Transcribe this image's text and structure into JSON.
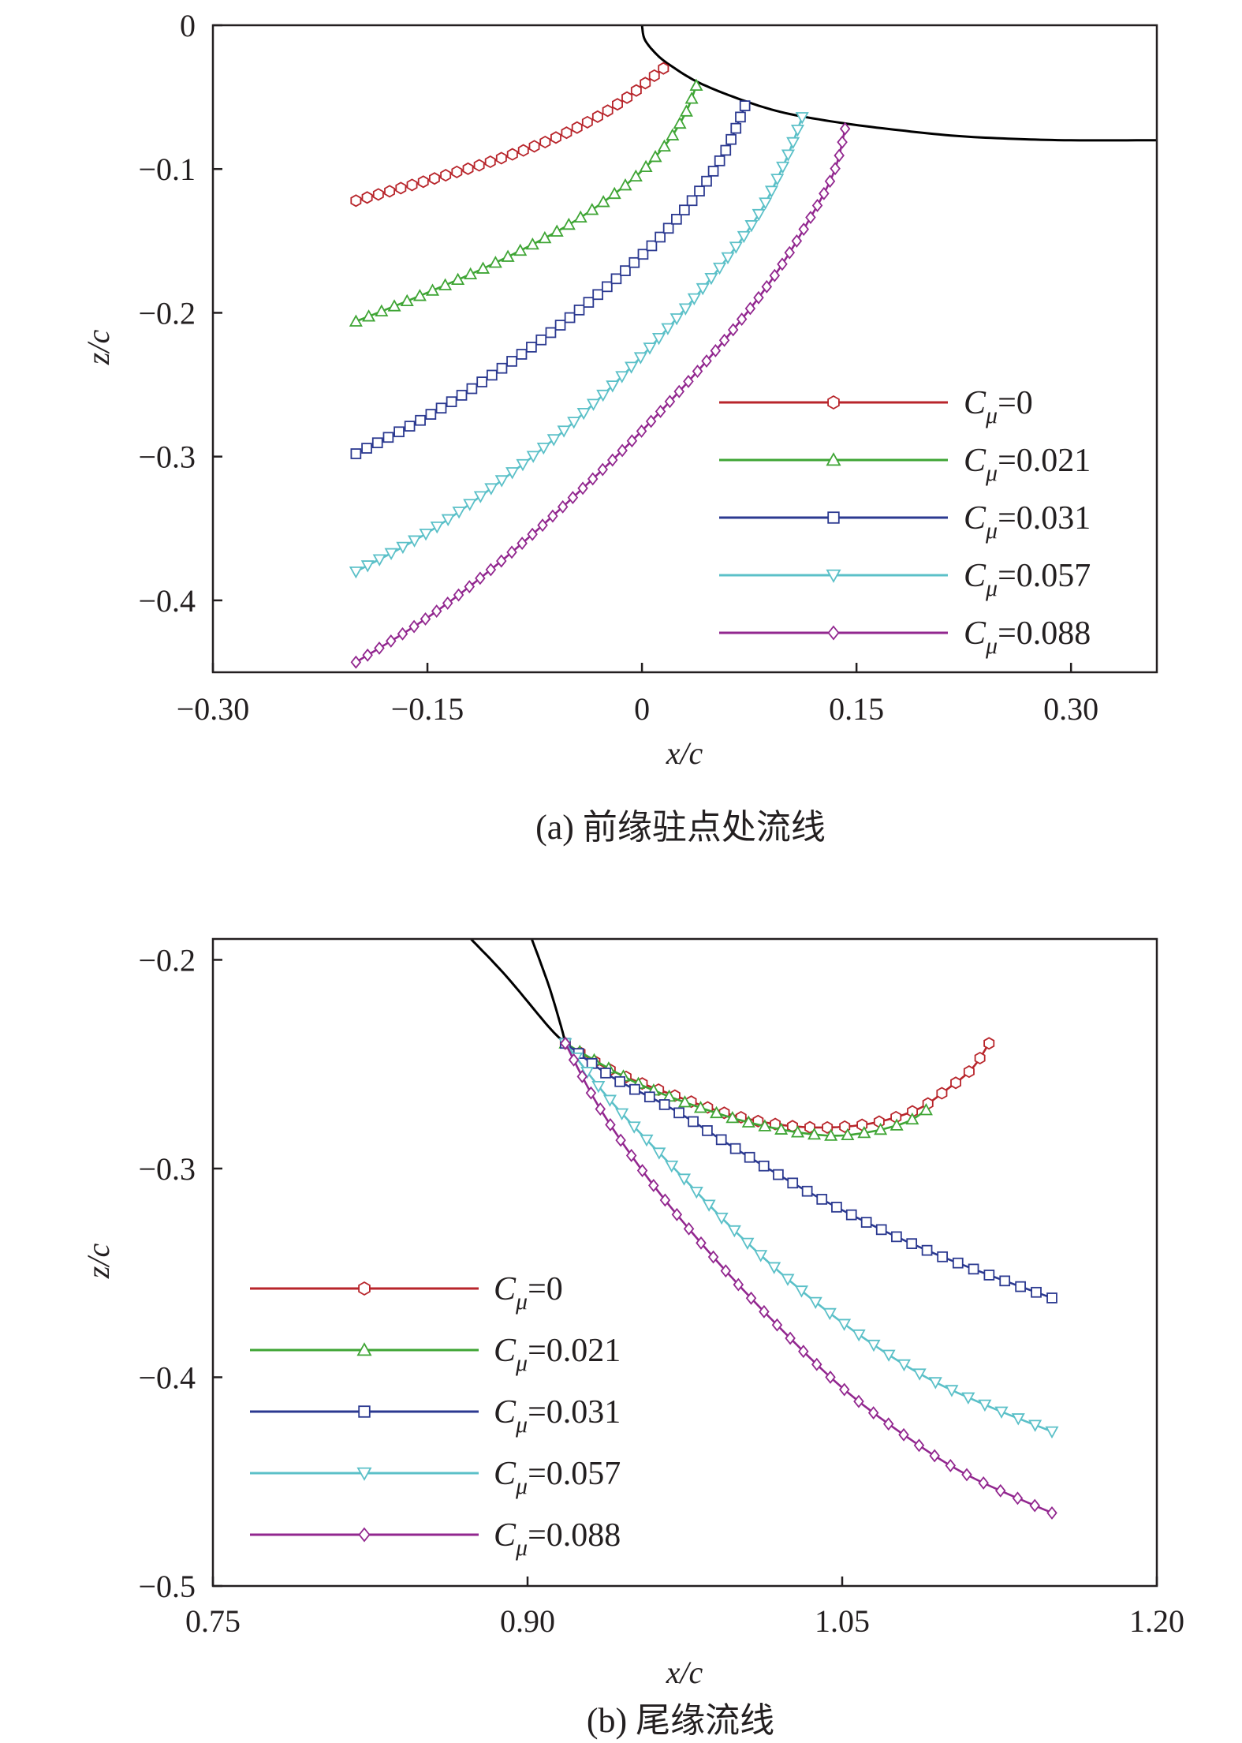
{
  "chart_data": [
    {
      "id": "a",
      "type": "line",
      "caption": "(a) 前缘驻点处流线",
      "xlabel": "x/c",
      "ylabel": "z/c",
      "xlim": [
        -0.3,
        0.36
      ],
      "ylim": [
        -0.45,
        0
      ],
      "xticks": [
        -0.3,
        -0.15,
        0,
        0.15,
        0.3
      ],
      "xtick_labels": [
        "−0.30",
        "−0.15",
        "0",
        "0.15",
        "0.30"
      ],
      "yticks": [
        0,
        -0.1,
        -0.2,
        -0.3,
        -0.4
      ],
      "ytick_labels": [
        "0",
        "−0.1",
        "−0.2",
        "−0.3",
        "−0.4"
      ],
      "legend_position": "bottom-right",
      "airfoil": [
        [
          0.0,
          0.0
        ],
        [
          0.002,
          -0.01
        ],
        [
          0.01,
          -0.02
        ],
        [
          0.02,
          -0.028
        ],
        [
          0.04,
          -0.04
        ],
        [
          0.07,
          -0.052
        ],
        [
          0.1,
          -0.061
        ],
        [
          0.14,
          -0.068
        ],
        [
          0.18,
          -0.073
        ],
        [
          0.22,
          -0.077
        ],
        [
          0.26,
          -0.079
        ],
        [
          0.3,
          -0.08
        ],
        [
          0.36,
          -0.08
        ]
      ],
      "series": [
        {
          "name": "Cμ=0",
          "label_symbol": "C",
          "label_sub": "μ",
          "label_value": "=0",
          "color": "#b8252b",
          "marker": "hexagon",
          "n_markers": 30,
          "points": [
            [
              -0.2,
              -0.122
            ],
            [
              -0.15,
              -0.108
            ],
            [
              -0.1,
              -0.093
            ],
            [
              -0.06,
              -0.078
            ],
            [
              -0.03,
              -0.063
            ],
            [
              -0.01,
              -0.05
            ],
            [
              0.005,
              -0.038
            ],
            [
              0.015,
              -0.03
            ]
          ]
        },
        {
          "name": "Cμ=0.021",
          "label_symbol": "C",
          "label_sub": "μ",
          "label_value": "=0.021",
          "color": "#3fa535",
          "marker": "triangle-up",
          "n_markers": 32,
          "points": [
            [
              -0.2,
              -0.206
            ],
            [
              -0.15,
              -0.186
            ],
            [
              -0.1,
              -0.164
            ],
            [
              -0.05,
              -0.138
            ],
            [
              -0.01,
              -0.11
            ],
            [
              0.015,
              -0.085
            ],
            [
              0.03,
              -0.062
            ],
            [
              0.038,
              -0.042
            ]
          ]
        },
        {
          "name": "Cμ=0.031",
          "label_symbol": "C",
          "label_sub": "μ",
          "label_value": "=0.031",
          "color": "#2b3990",
          "marker": "square",
          "n_markers": 45,
          "points": [
            [
              -0.2,
              -0.298
            ],
            [
              -0.15,
              -0.272
            ],
            [
              -0.1,
              -0.24
            ],
            [
              -0.05,
              -0.203
            ],
            [
              0.0,
              -0.16
            ],
            [
              0.035,
              -0.122
            ],
            [
              0.058,
              -0.088
            ],
            [
              0.072,
              -0.056
            ]
          ]
        },
        {
          "name": "Cμ=0.057",
          "label_symbol": "C",
          "label_sub": "μ",
          "label_value": "=0.057",
          "color": "#5bc0c8",
          "marker": "triangle-down",
          "n_markers": 50,
          "points": [
            [
              -0.2,
              -0.38
            ],
            [
              -0.15,
              -0.353
            ],
            [
              -0.1,
              -0.318
            ],
            [
              -0.05,
              -0.278
            ],
            [
              0.0,
              -0.23
            ],
            [
              0.045,
              -0.18
            ],
            [
              0.08,
              -0.134
            ],
            [
              0.1,
              -0.095
            ],
            [
              0.112,
              -0.064
            ]
          ]
        },
        {
          "name": "Cμ=0.088",
          "label_symbol": "C",
          "label_sub": "μ",
          "label_value": "=0.088",
          "color": "#92278f",
          "marker": "diamond",
          "n_markers": 55,
          "points": [
            [
              -0.2,
              -0.443
            ],
            [
              -0.15,
              -0.412
            ],
            [
              -0.1,
              -0.374
            ],
            [
              -0.05,
              -0.33
            ],
            [
              0.0,
              -0.282
            ],
            [
              0.05,
              -0.228
            ],
            [
              0.09,
              -0.178
            ],
            [
              0.12,
              -0.13
            ],
            [
              0.135,
              -0.1
            ],
            [
              0.142,
              -0.072
            ]
          ]
        }
      ]
    },
    {
      "id": "b",
      "type": "line",
      "caption": "(b) 尾缘流线",
      "xlabel": "x/c",
      "ylabel": "z/c",
      "xlim": [
        0.75,
        1.2
      ],
      "ylim": [
        -0.5,
        -0.19
      ],
      "xticks": [
        0.75,
        0.9,
        1.05,
        1.2
      ],
      "xtick_labels": [
        "0.75",
        "0.90",
        "1.05",
        "1.20"
      ],
      "yticks": [
        -0.2,
        -0.3,
        -0.4,
        -0.5
      ],
      "ytick_labels": [
        "−0.2",
        "−0.3",
        "−0.4",
        "−0.5"
      ],
      "legend_position": "bottom-left",
      "airfoil_upper": [
        [
          0.873,
          -0.19
        ],
        [
          0.89,
          -0.208
        ],
        [
          0.91,
          -0.232
        ],
        [
          0.918,
          -0.24
        ]
      ],
      "airfoil_lower": [
        [
          0.902,
          -0.19
        ],
        [
          0.91,
          -0.212
        ],
        [
          0.916,
          -0.232
        ],
        [
          0.918,
          -0.24
        ]
      ],
      "series": [
        {
          "name": "Cμ=0",
          "label_symbol": "C",
          "label_sub": "μ",
          "label_value": "=0",
          "color": "#b8252b",
          "marker": "hexagon",
          "n_markers": 28,
          "points": [
            [
              0.918,
              -0.24
            ],
            [
              0.94,
              -0.253
            ],
            [
              0.97,
              -0.265
            ],
            [
              1.0,
              -0.275
            ],
            [
              1.03,
              -0.28
            ],
            [
              1.06,
              -0.279
            ],
            [
              1.085,
              -0.272
            ],
            [
              1.1,
              -0.262
            ],
            [
              1.112,
              -0.252
            ],
            [
              1.12,
              -0.24
            ]
          ]
        },
        {
          "name": "Cμ=0.021",
          "label_symbol": "C",
          "label_sub": "μ",
          "label_value": "=0.021",
          "color": "#3fa535",
          "marker": "triangle-up",
          "n_markers": 24,
          "points": [
            [
              0.918,
              -0.24
            ],
            [
              0.95,
              -0.258
            ],
            [
              0.98,
              -0.27
            ],
            [
              1.01,
              -0.279
            ],
            [
              1.04,
              -0.284
            ],
            [
              1.06,
              -0.283
            ],
            [
              1.08,
              -0.278
            ],
            [
              1.09,
              -0.272
            ]
          ]
        },
        {
          "name": "Cμ=0.031",
          "label_symbol": "C",
          "label_sub": "μ",
          "label_value": "=0.031",
          "color": "#2b3990",
          "marker": "square",
          "n_markers": 34,
          "points": [
            [
              0.918,
              -0.24
            ],
            [
              0.94,
              -0.256
            ],
            [
              0.97,
              -0.272
            ],
            [
              1.0,
              -0.291
            ],
            [
              1.03,
              -0.309
            ],
            [
              1.06,
              -0.325
            ],
            [
              1.09,
              -0.339
            ],
            [
              1.12,
              -0.351
            ],
            [
              1.15,
              -0.362
            ]
          ]
        },
        {
          "name": "Cμ=0.057",
          "label_symbol": "C",
          "label_sub": "μ",
          "label_value": "=0.057",
          "color": "#5bc0c8",
          "marker": "triangle-down",
          "n_markers": 36,
          "points": [
            [
              0.918,
              -0.24
            ],
            [
              0.94,
              -0.268
            ],
            [
              0.97,
              -0.3
            ],
            [
              1.0,
              -0.331
            ],
            [
              1.03,
              -0.358
            ],
            [
              1.06,
              -0.381
            ],
            [
              1.09,
              -0.4
            ],
            [
              1.12,
              -0.414
            ],
            [
              1.15,
              -0.426
            ]
          ]
        },
        {
          "name": "Cμ=0.088",
          "label_symbol": "C",
          "label_sub": "μ",
          "label_value": "=0.088",
          "color": "#92278f",
          "marker": "diamond",
          "n_markers": 38,
          "points": [
            [
              0.918,
              -0.24
            ],
            [
              0.935,
              -0.272
            ],
            [
              0.96,
              -0.308
            ],
            [
              0.99,
              -0.344
            ],
            [
              1.02,
              -0.376
            ],
            [
              1.05,
              -0.405
            ],
            [
              1.08,
              -0.428
            ],
            [
              1.11,
              -0.447
            ],
            [
              1.15,
              -0.465
            ]
          ]
        }
      ]
    }
  ]
}
